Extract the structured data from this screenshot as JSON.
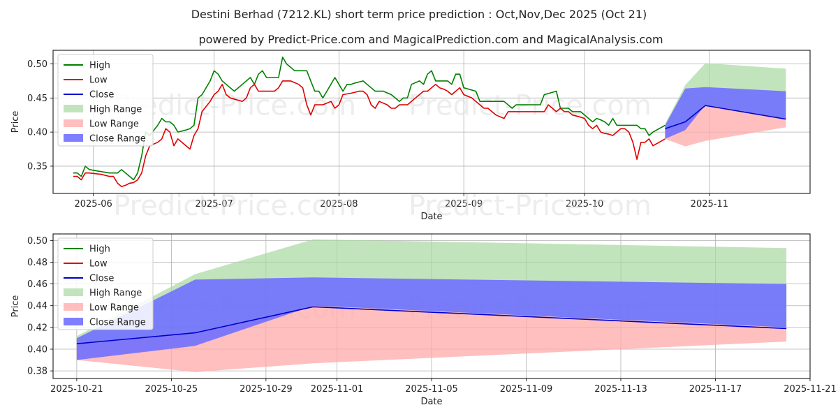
{
  "title": "Destini Berhad (7212.KL) short term price prediction : Oct,Nov,Dec 2025 (Oct 21)",
  "subtitle": "powered by Predict-Price.com and MagicalPrediction.com and MagicalAnalysis.com",
  "watermark": "Predict-Price.com",
  "colors": {
    "high": "#008000",
    "low": "#e00000",
    "close": "#0000cc",
    "high_range": "#a8d8a0",
    "low_range": "#ffaaaa",
    "close_range": "#7070ff"
  },
  "legend": [
    "High",
    "Low",
    "Close",
    "High Range",
    "Low Range",
    "Close Range"
  ],
  "chart_data": [
    {
      "type": "line",
      "name": "history",
      "xlabel": "Date",
      "ylabel": "Price",
      "xlim": [
        "2025-05-22",
        "2025-11-26"
      ],
      "ylim": [
        0.31,
        0.52
      ],
      "x_ticks": [
        "2025-06-01",
        "2025-07-01",
        "2025-08-01",
        "2025-09-01",
        "2025-10-01",
        "2025-11-01"
      ],
      "x_tick_labels": [
        "2025-06",
        "2025-07",
        "2025-08",
        "2025-09",
        "2025-10",
        "2025-11"
      ],
      "y_ticks": [
        0.35,
        0.4,
        0.45,
        0.5
      ],
      "y_tick_labels": [
        "0.35",
        "0.40",
        "0.45",
        "0.50"
      ],
      "grid": true,
      "legend_position": "top-left",
      "series": [
        {
          "name": "High",
          "points": [
            [
              "2025-05-27",
              0.34
            ],
            [
              "2025-05-28",
              0.34
            ],
            [
              "2025-05-29",
              0.335
            ],
            [
              "2025-05-30",
              0.35
            ],
            [
              "2025-05-31",
              0.345
            ],
            [
              "2025-06-03",
              0.342
            ],
            [
              "2025-06-05",
              0.34
            ],
            [
              "2025-06-07",
              0.34
            ],
            [
              "2025-06-08",
              0.345
            ],
            [
              "2025-06-10",
              0.335
            ],
            [
              "2025-06-11",
              0.33
            ],
            [
              "2025-06-12",
              0.34
            ],
            [
              "2025-06-13",
              0.365
            ],
            [
              "2025-06-14",
              0.4
            ],
            [
              "2025-06-15",
              0.395
            ],
            [
              "2025-06-17",
              0.41
            ],
            [
              "2025-06-18",
              0.42
            ],
            [
              "2025-06-19",
              0.415
            ],
            [
              "2025-06-20",
              0.415
            ],
            [
              "2025-06-21",
              0.41
            ],
            [
              "2025-06-22",
              0.4
            ],
            [
              "2025-06-24",
              0.403
            ],
            [
              "2025-06-25",
              0.405
            ],
            [
              "2025-06-26",
              0.41
            ],
            [
              "2025-06-27",
              0.45
            ],
            [
              "2025-06-28",
              0.455
            ],
            [
              "2025-06-30",
              0.475
            ],
            [
              "2025-07-01",
              0.49
            ],
            [
              "2025-07-02",
              0.485
            ],
            [
              "2025-07-03",
              0.475
            ],
            [
              "2025-07-04",
              0.47
            ],
            [
              "2025-07-06",
              0.46
            ],
            [
              "2025-07-08",
              0.47
            ],
            [
              "2025-07-10",
              0.48
            ],
            [
              "2025-07-11",
              0.47
            ],
            [
              "2025-07-12",
              0.485
            ],
            [
              "2025-07-13",
              0.49
            ],
            [
              "2025-07-14",
              0.48
            ],
            [
              "2025-07-17",
              0.48
            ],
            [
              "2025-07-18",
              0.51
            ],
            [
              "2025-07-19",
              0.5
            ],
            [
              "2025-07-21",
              0.49
            ],
            [
              "2025-07-24",
              0.49
            ],
            [
              "2025-07-25",
              0.475
            ],
            [
              "2025-07-26",
              0.46
            ],
            [
              "2025-07-27",
              0.46
            ],
            [
              "2025-07-28",
              0.45
            ],
            [
              "2025-07-29",
              0.46
            ],
            [
              "2025-07-31",
              0.48
            ],
            [
              "2025-08-01",
              0.47
            ],
            [
              "2025-08-02",
              0.46
            ],
            [
              "2025-08-03",
              0.47
            ],
            [
              "2025-08-04",
              0.47
            ],
            [
              "2025-08-05",
              0.472
            ],
            [
              "2025-08-07",
              0.475
            ],
            [
              "2025-08-08",
              0.47
            ],
            [
              "2025-08-10",
              0.46
            ],
            [
              "2025-08-12",
              0.46
            ],
            [
              "2025-08-14",
              0.455
            ],
            [
              "2025-08-16",
              0.445
            ],
            [
              "2025-08-17",
              0.45
            ],
            [
              "2025-08-18",
              0.45
            ],
            [
              "2025-08-19",
              0.47
            ],
            [
              "2025-08-21",
              0.475
            ],
            [
              "2025-08-22",
              0.47
            ],
            [
              "2025-08-23",
              0.485
            ],
            [
              "2025-08-24",
              0.49
            ],
            [
              "2025-08-25",
              0.475
            ],
            [
              "2025-08-28",
              0.475
            ],
            [
              "2025-08-29",
              0.47
            ],
            [
              "2025-08-30",
              0.485
            ],
            [
              "2025-08-31",
              0.485
            ],
            [
              "2025-09-01",
              0.465
            ],
            [
              "2025-09-04",
              0.46
            ],
            [
              "2025-09-05",
              0.445
            ],
            [
              "2025-09-07",
              0.445
            ],
            [
              "2025-09-11",
              0.445
            ],
            [
              "2025-09-13",
              0.435
            ],
            [
              "2025-09-14",
              0.44
            ],
            [
              "2025-09-20",
              0.44
            ],
            [
              "2025-09-21",
              0.455
            ],
            [
              "2025-09-24",
              0.46
            ],
            [
              "2025-09-25",
              0.435
            ],
            [
              "2025-09-27",
              0.435
            ],
            [
              "2025-09-28",
              0.43
            ],
            [
              "2025-09-30",
              0.43
            ],
            [
              "2025-10-02",
              0.42
            ],
            [
              "2025-10-03",
              0.415
            ],
            [
              "2025-10-04",
              0.42
            ],
            [
              "2025-10-05",
              0.418
            ],
            [
              "2025-10-06",
              0.415
            ],
            [
              "2025-10-07",
              0.41
            ],
            [
              "2025-10-08",
              0.42
            ],
            [
              "2025-10-09",
              0.41
            ],
            [
              "2025-10-14",
              0.41
            ],
            [
              "2025-10-15",
              0.405
            ],
            [
              "2025-10-16",
              0.405
            ],
            [
              "2025-10-17",
              0.395
            ],
            [
              "2025-10-18",
              0.4
            ],
            [
              "2025-10-21",
              0.41
            ]
          ]
        },
        {
          "name": "Low",
          "points": [
            [
              "2025-05-27",
              0.335
            ],
            [
              "2025-05-28",
              0.335
            ],
            [
              "2025-05-29",
              0.33
            ],
            [
              "2025-05-30",
              0.34
            ],
            [
              "2025-05-31",
              0.34
            ],
            [
              "2025-06-03",
              0.338
            ],
            [
              "2025-06-05",
              0.335
            ],
            [
              "2025-06-06",
              0.335
            ],
            [
              "2025-06-07",
              0.325
            ],
            [
              "2025-06-08",
              0.32
            ],
            [
              "2025-06-09",
              0.322
            ],
            [
              "2025-06-10",
              0.325
            ],
            [
              "2025-06-11",
              0.326
            ],
            [
              "2025-06-12",
              0.33
            ],
            [
              "2025-06-13",
              0.34
            ],
            [
              "2025-06-14",
              0.365
            ],
            [
              "2025-06-15",
              0.38
            ],
            [
              "2025-06-17",
              0.385
            ],
            [
              "2025-06-18",
              0.39
            ],
            [
              "2025-06-19",
              0.405
            ],
            [
              "2025-06-20",
              0.4
            ],
            [
              "2025-06-21",
              0.38
            ],
            [
              "2025-06-22",
              0.39
            ],
            [
              "2025-06-25",
              0.375
            ],
            [
              "2025-06-26",
              0.395
            ],
            [
              "2025-06-27",
              0.405
            ],
            [
              "2025-06-28",
              0.43
            ],
            [
              "2025-06-30",
              0.445
            ],
            [
              "2025-07-01",
              0.455
            ],
            [
              "2025-07-02",
              0.46
            ],
            [
              "2025-07-03",
              0.47
            ],
            [
              "2025-07-04",
              0.455
            ],
            [
              "2025-07-05",
              0.45
            ],
            [
              "2025-07-08",
              0.445
            ],
            [
              "2025-07-09",
              0.45
            ],
            [
              "2025-07-10",
              0.465
            ],
            [
              "2025-07-11",
              0.47
            ],
            [
              "2025-07-12",
              0.46
            ],
            [
              "2025-07-16",
              0.46
            ],
            [
              "2025-07-17",
              0.465
            ],
            [
              "2025-07-18",
              0.475
            ],
            [
              "2025-07-20",
              0.475
            ],
            [
              "2025-07-22",
              0.47
            ],
            [
              "2025-07-23",
              0.465
            ],
            [
              "2025-07-24",
              0.44
            ],
            [
              "2025-07-25",
              0.425
            ],
            [
              "2025-07-26",
              0.44
            ],
            [
              "2025-07-27",
              0.44
            ],
            [
              "2025-07-28",
              0.44
            ],
            [
              "2025-07-30",
              0.445
            ],
            [
              "2025-07-31",
              0.435
            ],
            [
              "2025-08-01",
              0.44
            ],
            [
              "2025-08-02",
              0.455
            ],
            [
              "2025-08-04",
              0.457
            ],
            [
              "2025-08-06",
              0.46
            ],
            [
              "2025-08-07",
              0.46
            ],
            [
              "2025-08-08",
              0.455
            ],
            [
              "2025-08-09",
              0.44
            ],
            [
              "2025-08-10",
              0.435
            ],
            [
              "2025-08-11",
              0.445
            ],
            [
              "2025-08-13",
              0.44
            ],
            [
              "2025-08-14",
              0.435
            ],
            [
              "2025-08-15",
              0.435
            ],
            [
              "2025-08-16",
              0.44
            ],
            [
              "2025-08-17",
              0.44
            ],
            [
              "2025-08-18",
              0.44
            ],
            [
              "2025-08-19",
              0.445
            ],
            [
              "2025-08-20",
              0.45
            ],
            [
              "2025-08-22",
              0.46
            ],
            [
              "2025-08-23",
              0.46
            ],
            [
              "2025-08-24",
              0.465
            ],
            [
              "2025-08-25",
              0.47
            ],
            [
              "2025-08-26",
              0.465
            ],
            [
              "2025-08-27",
              0.463
            ],
            [
              "2025-08-28",
              0.46
            ],
            [
              "2025-08-29",
              0.455
            ],
            [
              "2025-08-30",
              0.46
            ],
            [
              "2025-08-31",
              0.465
            ],
            [
              "2025-09-01",
              0.455
            ],
            [
              "2025-09-03",
              0.45
            ],
            [
              "2025-09-06",
              0.435
            ],
            [
              "2025-09-07",
              0.435
            ],
            [
              "2025-09-09",
              0.425
            ],
            [
              "2025-09-11",
              0.42
            ],
            [
              "2025-09-12",
              0.43
            ],
            [
              "2025-09-19",
              0.43
            ],
            [
              "2025-09-21",
              0.43
            ],
            [
              "2025-09-22",
              0.44
            ],
            [
              "2025-09-24",
              0.43
            ],
            [
              "2025-09-25",
              0.435
            ],
            [
              "2025-09-26",
              0.43
            ],
            [
              "2025-09-27",
              0.43
            ],
            [
              "2025-09-28",
              0.425
            ],
            [
              "2025-09-30",
              0.422
            ],
            [
              "2025-10-01",
              0.42
            ],
            [
              "2025-10-02",
              0.41
            ],
            [
              "2025-10-03",
              0.405
            ],
            [
              "2025-10-04",
              0.41
            ],
            [
              "2025-10-05",
              0.4
            ],
            [
              "2025-10-06",
              0.398
            ],
            [
              "2025-10-07",
              0.397
            ],
            [
              "2025-10-08",
              0.395
            ],
            [
              "2025-10-09",
              0.4
            ],
            [
              "2025-10-10",
              0.405
            ],
            [
              "2025-10-11",
              0.405
            ],
            [
              "2025-10-12",
              0.4
            ],
            [
              "2025-10-13",
              0.385
            ],
            [
              "2025-10-14",
              0.36
            ],
            [
              "2025-10-15",
              0.385
            ],
            [
              "2025-10-16",
              0.385
            ],
            [
              "2025-10-17",
              0.39
            ],
            [
              "2025-10-18",
              0.38
            ],
            [
              "2025-10-21",
              0.39
            ]
          ]
        }
      ]
    },
    {
      "type": "area",
      "name": "prediction",
      "xlabel": "Date",
      "ylabel": "Price",
      "xlim": [
        "2025-10-20",
        "2025-11-21"
      ],
      "ylim": [
        0.373,
        0.506
      ],
      "x_ticks": [
        "2025-10-21",
        "2025-10-25",
        "2025-10-29",
        "2025-11-01",
        "2025-11-05",
        "2025-11-09",
        "2025-11-13",
        "2025-11-17",
        "2025-11-21"
      ],
      "y_ticks": [
        0.38,
        0.4,
        0.42,
        0.44,
        0.46,
        0.48,
        0.5
      ],
      "y_tick_labels": [
        "0.38",
        "0.40",
        "0.42",
        "0.44",
        "0.46",
        "0.48",
        "0.50"
      ],
      "grid": true,
      "legend_position": "top-left",
      "x": [
        "2025-10-21",
        "2025-10-26",
        "2025-10-31",
        "2025-11-20"
      ],
      "series": [
        {
          "name": "High Range",
          "lower": [
            0.405,
            0.415,
            0.44,
            0.42
          ],
          "upper": [
            0.412,
            0.469,
            0.501,
            0.493
          ]
        },
        {
          "name": "Low Range",
          "lower": [
            0.39,
            0.379,
            0.387,
            0.407
          ],
          "upper": [
            0.405,
            0.415,
            0.44,
            0.42
          ]
        },
        {
          "name": "Close Range",
          "lower": [
            0.39,
            0.403,
            0.44,
            0.42
          ],
          "upper": [
            0.41,
            0.464,
            0.466,
            0.46
          ]
        },
        {
          "name": "Close",
          "values": [
            0.405,
            0.415,
            0.439,
            0.419
          ]
        }
      ]
    }
  ]
}
